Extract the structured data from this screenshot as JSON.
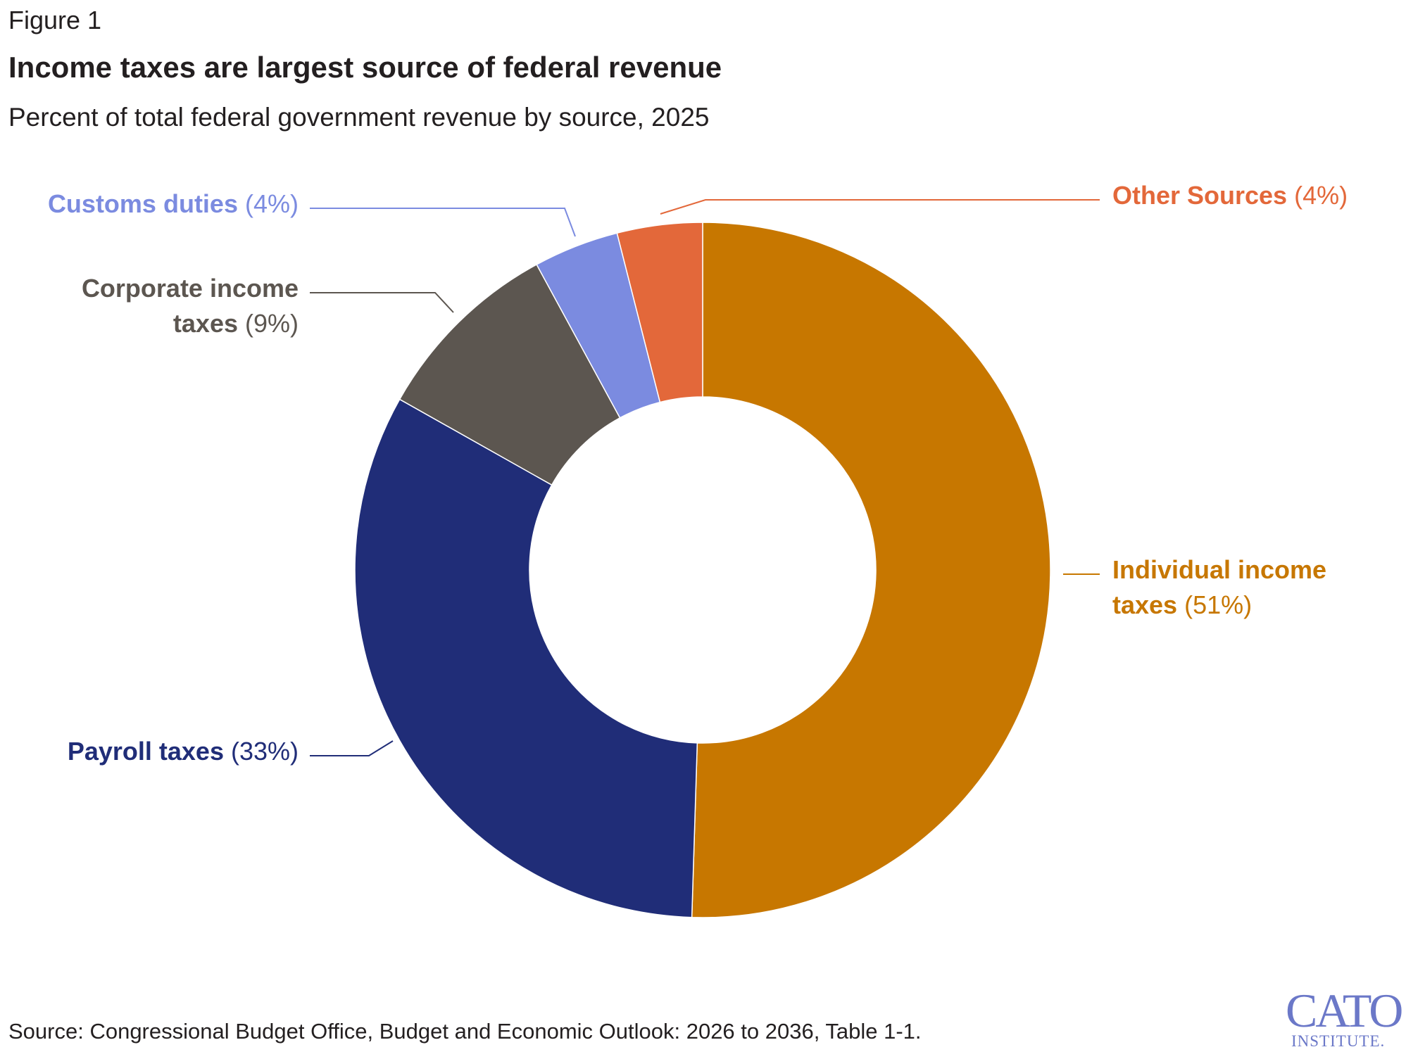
{
  "figure_label": "Figure 1",
  "title": "Income taxes are largest source of federal revenue",
  "subtitle": "Percent of total federal government revenue by source, 2025",
  "source": "Source: Congressional Budget Office, Budget and Economic Outlook: 2026 to 2036, Table 1-1.",
  "logo": {
    "main": "CATO",
    "sub": "INSTITUTE."
  },
  "chart_data": {
    "type": "pie",
    "donut": true,
    "title": "Income taxes are largest source of federal revenue",
    "subtitle": "Percent of total federal government revenue by source, 2025",
    "slices": [
      {
        "name": "Individual income taxes",
        "label_lines": [
          "Individual income",
          "taxes"
        ],
        "pct_label": "(51%)",
        "value": 51,
        "color": "#c77700"
      },
      {
        "name": "Payroll taxes",
        "label_lines": [
          "Payroll taxes"
        ],
        "pct_label": "(33%)",
        "value": 33,
        "color": "#202d78"
      },
      {
        "name": "Corporate income taxes",
        "label_lines": [
          "Corporate income",
          "taxes"
        ],
        "pct_label": "(9%)",
        "value": 9,
        "color": "#5c5650"
      },
      {
        "name": "Customs duties",
        "label_lines": [
          "Customs duties"
        ],
        "pct_label": "(4%)",
        "value": 4,
        "color": "#7b8be0"
      },
      {
        "name": "Other Sources",
        "label_lines": [
          "Other Sources"
        ],
        "pct_label": "(4%)",
        "value": 4,
        "color": "#e3683a"
      }
    ]
  }
}
